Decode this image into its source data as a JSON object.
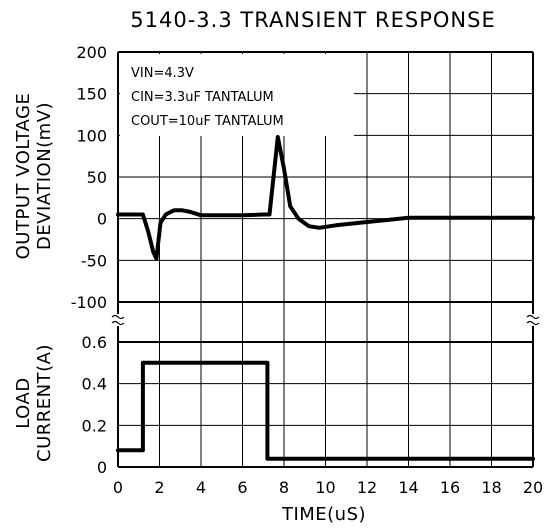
{
  "chart_data": {
    "type": "line",
    "title": "5140-3.3 TRANSIENT RESPONSE",
    "xlabel": "TIME(uS)",
    "xlim": [
      0,
      20
    ],
    "x_ticks": [
      "0",
      "2",
      "4",
      "6",
      "8",
      "10",
      "12",
      "14",
      "16",
      "18",
      "20"
    ],
    "grid": true,
    "annotations": [
      "VIN=4.3V",
      "CIN=3.3uF TANTALUM",
      "COUT=10uF TANTALUM"
    ],
    "panels": [
      {
        "ylabel_lines": [
          "OUTPUT VOLTAGE",
          "DEVIATION(mV)"
        ],
        "ylim": [
          -100,
          200
        ],
        "y_ticks": [
          "200",
          "150",
          "100",
          "50",
          "0",
          "-50",
          "-100"
        ],
        "x": [
          0,
          1.2,
          1.45,
          1.7,
          1.85,
          2.05,
          2.3,
          2.7,
          3.1,
          3.5,
          4.0,
          5.0,
          6.0,
          7.0,
          7.3,
          7.7,
          8.0,
          8.3,
          8.7,
          9.2,
          9.7,
          10.5,
          12.0,
          14.0,
          16.0,
          18.0,
          20.0
        ],
        "y": [
          5,
          5,
          -15,
          -40,
          -48,
          -5,
          5,
          10,
          10,
          8,
          4,
          4,
          4,
          5,
          5,
          98,
          60,
          15,
          0,
          -9,
          -11,
          -8,
          -4,
          1,
          1,
          1,
          1
        ]
      },
      {
        "ylabel_lines": [
          "LOAD",
          "CURRENT(A)"
        ],
        "ylim": [
          0,
          0.6
        ],
        "y_ticks": [
          "0.6",
          "0.4",
          "0.2",
          "0"
        ],
        "x": [
          0,
          1.2,
          1.2,
          7.2,
          7.2,
          20
        ],
        "y": [
          0.08,
          0.08,
          0.5,
          0.5,
          0.04,
          0.04
        ]
      }
    ]
  }
}
